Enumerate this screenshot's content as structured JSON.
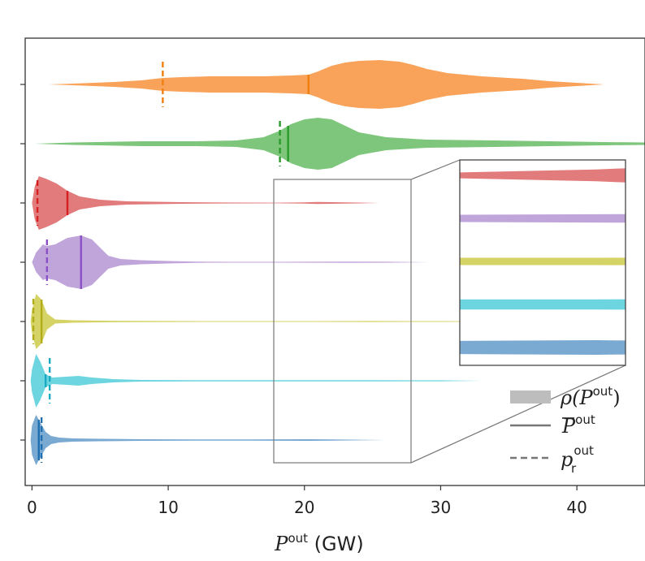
{
  "chart_data": {
    "type": "violin",
    "xlabel": {
      "main": "P",
      "sup": "out",
      "unit": " (GW)"
    },
    "ylabel": "",
    "xlim": [
      -0.5,
      45
    ],
    "xticks": [
      0,
      10,
      20,
      30,
      40
    ],
    "tick_labels": [
      "0",
      "10",
      "20",
      "30",
      "40"
    ],
    "series": [
      {
        "name": "orange",
        "color": "#f9a35a",
        "line_color": "#f07f10",
        "mean": 20.3,
        "reference": 9.6,
        "density": [
          [
            1.2,
            0
          ],
          [
            3,
            1
          ],
          [
            6,
            3
          ],
          [
            8,
            5
          ],
          [
            9.6,
            8
          ],
          [
            11,
            9
          ],
          [
            13,
            10
          ],
          [
            15,
            10
          ],
          [
            17,
            10
          ],
          [
            19,
            11
          ],
          [
            20.3,
            12
          ],
          [
            21,
            16
          ],
          [
            22,
            23
          ],
          [
            23,
            27
          ],
          [
            24,
            29
          ],
          [
            25.5,
            30
          ],
          [
            27,
            28
          ],
          [
            28,
            24
          ],
          [
            29,
            19
          ],
          [
            30.5,
            14
          ],
          [
            33,
            10
          ],
          [
            36,
            7
          ],
          [
            38,
            4
          ],
          [
            40,
            2
          ],
          [
            42,
            0
          ]
        ]
      },
      {
        "name": "green",
        "color": "#7dc67b",
        "line_color": "#2a9a2a",
        "mean": 18.8,
        "reference": 18.2,
        "density": [
          [
            0.2,
            0
          ],
          [
            3,
            1.5
          ],
          [
            8,
            3
          ],
          [
            12,
            3
          ],
          [
            15,
            4
          ],
          [
            17,
            8
          ],
          [
            18.2,
            16
          ],
          [
            19,
            24
          ],
          [
            20,
            30
          ],
          [
            21,
            32
          ],
          [
            22,
            30
          ],
          [
            23,
            22
          ],
          [
            24,
            14
          ],
          [
            26,
            8
          ],
          [
            29,
            5
          ],
          [
            34,
            4
          ],
          [
            38,
            3
          ],
          [
            42,
            2
          ],
          [
            45,
            1.5
          ]
        ]
      },
      {
        "name": "red",
        "color": "#e27b7b",
        "line_color": "#d42020",
        "mean": 2.6,
        "reference": 0.4,
        "density": [
          [
            0,
            0
          ],
          [
            0.2,
            20
          ],
          [
            0.5,
            33
          ],
          [
            1,
            30
          ],
          [
            1.8,
            24
          ],
          [
            2.6,
            15
          ],
          [
            3.5,
            8
          ],
          [
            5,
            4
          ],
          [
            7,
            2
          ],
          [
            9,
            1.5
          ],
          [
            11,
            1
          ],
          [
            14,
            0.6
          ],
          [
            18,
            0.4
          ],
          [
            20,
            0.8
          ],
          [
            21,
            1.2
          ],
          [
            22,
            1
          ],
          [
            24,
            0.5
          ],
          [
            25.5,
            0
          ]
        ]
      },
      {
        "name": "purple",
        "color": "#c0a5da",
        "line_color": "#8a4fc6",
        "mean": 3.6,
        "reference": 1.1,
        "density": [
          [
            0,
            0
          ],
          [
            0.3,
            12
          ],
          [
            0.8,
            22
          ],
          [
            1.1,
            20
          ],
          [
            1.7,
            22
          ],
          [
            2.6,
            30
          ],
          [
            3.6,
            33
          ],
          [
            4.4,
            28
          ],
          [
            5,
            18
          ],
          [
            5.6,
            8
          ],
          [
            6.5,
            4
          ],
          [
            8,
            2.5
          ],
          [
            10,
            1.5
          ],
          [
            12,
            0.7
          ],
          [
            15,
            0.5
          ],
          [
            18,
            0.5
          ],
          [
            21,
            0.6
          ],
          [
            23,
            0.8
          ],
          [
            26,
            0.6
          ],
          [
            29.2,
            0
          ]
        ]
      },
      {
        "name": "olive",
        "color": "#d6d366",
        "line_color": "#b0ad18",
        "mean": 0.7,
        "reference": 0.1,
        "density": [
          [
            -0.1,
            0
          ],
          [
            0,
            14
          ],
          [
            0.3,
            34
          ],
          [
            0.7,
            27
          ],
          [
            1.1,
            10
          ],
          [
            1.7,
            2.5
          ],
          [
            3,
            1.5
          ],
          [
            6,
            0.9
          ],
          [
            10,
            0.6
          ],
          [
            15,
            0.5
          ],
          [
            20,
            0.5
          ],
          [
            25,
            0.6
          ],
          [
            30,
            0.5
          ],
          [
            35,
            0.3
          ],
          [
            40,
            0.2
          ],
          [
            44,
            0
          ]
        ]
      },
      {
        "name": "cyan",
        "color": "#6cd5e0",
        "line_color": "#1aa9c2",
        "mean": 1.0,
        "reference": 1.3,
        "density": [
          [
            -0.1,
            0
          ],
          [
            0,
            14
          ],
          [
            0.3,
            33
          ],
          [
            0.6,
            24
          ],
          [
            1,
            8
          ],
          [
            1.5,
            4
          ],
          [
            2.5,
            5
          ],
          [
            3.4,
            6
          ],
          [
            4.4,
            4
          ],
          [
            6,
            2
          ],
          [
            8,
            1
          ],
          [
            12,
            0.8
          ],
          [
            16,
            0.7
          ],
          [
            20,
            0.7
          ],
          [
            25,
            0.8
          ],
          [
            30,
            0.6
          ],
          [
            33,
            0
          ]
        ]
      },
      {
        "name": "blue",
        "color": "#7aa9d2",
        "line_color": "#1f6fb0",
        "mean": 0.5,
        "reference": 0.7,
        "density": [
          [
            -0.1,
            0
          ],
          [
            0,
            18
          ],
          [
            0.3,
            31
          ],
          [
            0.6,
            22
          ],
          [
            1,
            10
          ],
          [
            1.4,
            5
          ],
          [
            2,
            3
          ],
          [
            3,
            2
          ],
          [
            5,
            1.5
          ],
          [
            8,
            1
          ],
          [
            12,
            0.8
          ],
          [
            16,
            0.8
          ],
          [
            20,
            1
          ],
          [
            22,
            0.8
          ],
          [
            26,
            0
          ]
        ]
      }
    ],
    "inset": {
      "source_xlim": [
        18,
        28
      ],
      "x_scale_factor": 5,
      "y_scale_factor": 9,
      "rows": [
        "red",
        "purple",
        "olive",
        "cyan",
        "blue"
      ]
    },
    "legend": [
      {
        "symbol": "band",
        "text": "ρ(P",
        "sup": "out",
        "close": ")"
      },
      {
        "symbol": "solid",
        "text": "P",
        "sup": "out",
        "overline": true
      },
      {
        "symbol": "dashed",
        "text": "p",
        "sup": "out",
        "sub": "r"
      }
    ],
    "legend_color": "#bdbdbd",
    "legend_line_color": "#777777",
    "inset_frame_color": "#555555"
  }
}
